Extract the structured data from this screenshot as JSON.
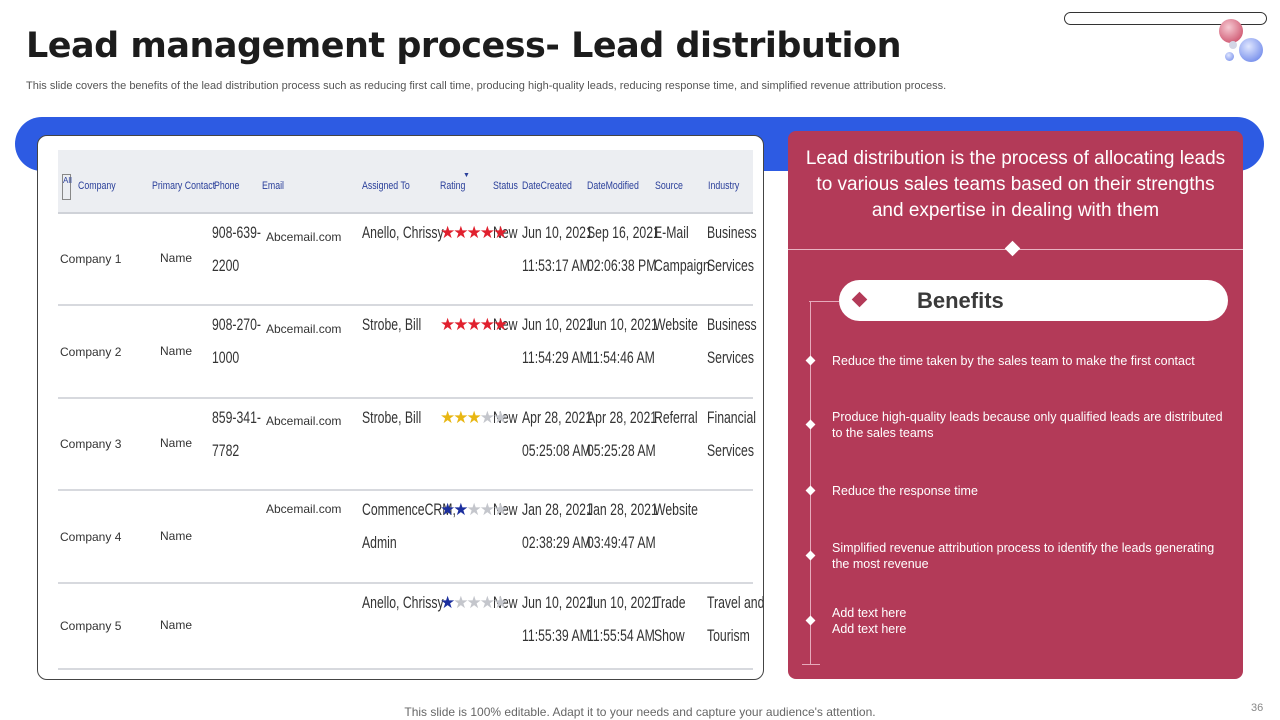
{
  "title": "Lead management process- Lead distribution",
  "subtitle": "This slide covers the benefits of the lead distribution process such as reducing first call time, producing high-quality leads, reducing response time, and simplified revenue attribution process.",
  "table": {
    "all_label": "All",
    "headers": [
      "Company",
      "Primary Contact",
      "Phone",
      "Email",
      "Assigned To",
      "Rating",
      "Status",
      "DateCreated",
      "DateModified",
      "Source",
      "Industry"
    ],
    "rows": [
      {
        "company": "Company 1",
        "contact": "Name",
        "phone_1": "908-639-",
        "phone_2": "2200",
        "email": "Abcemail.com",
        "assigned_1": "Anello, Chrissy",
        "assigned_2": "",
        "rating": 5,
        "status": "New",
        "created_1": "Jun 10, 2021",
        "created_2": "11:53:17 AM",
        "modified_1": "Sep 16, 2021",
        "modified_2": "02:06:38 PM",
        "source_1": "E-Mail",
        "source_2": "Campaign",
        "industry_1": "Business",
        "industry_2": "Services"
      },
      {
        "company": "Company 2",
        "contact": "Name",
        "phone_1": "908-270-",
        "phone_2": "1000",
        "email": "Abcemail.com",
        "assigned_1": "Strobe, Bill",
        "assigned_2": "",
        "rating": 5,
        "status": "New",
        "created_1": "Jun 10, 2021",
        "created_2": "11:54:29 AM",
        "modified_1": "Jun 10, 2021",
        "modified_2": "11:54:46 AM",
        "source_1": "Website",
        "source_2": "",
        "industry_1": "Business",
        "industry_2": "Services"
      },
      {
        "company": "Company 3",
        "contact": "Name",
        "phone_1": "859-341-",
        "phone_2": "7782",
        "email": "Abcemail.com",
        "assigned_1": "Strobe, Bill",
        "assigned_2": "",
        "rating": 3,
        "status": "New",
        "created_1": "Apr 28, 2021",
        "created_2": "05:25:08 AM",
        "modified_1": "Apr 28, 2021",
        "modified_2": "05:25:28 AM",
        "source_1": "Referral",
        "source_2": "",
        "industry_1": "Financial",
        "industry_2": "Services"
      },
      {
        "company": "Company 4",
        "contact": "Name",
        "phone_1": "",
        "phone_2": "",
        "email": "Abcemail.com",
        "assigned_1": "CommenceCRM,",
        "assigned_2": "Admin",
        "rating": 2,
        "status": "New",
        "created_1": "Jan 28, 2021",
        "created_2": "02:38:29 AM",
        "modified_1": "Jan 28, 2021",
        "modified_2": "03:49:47 AM",
        "source_1": "Website",
        "source_2": "",
        "industry_1": "",
        "industry_2": ""
      },
      {
        "company": "Company 5",
        "contact": "Name",
        "phone_1": "",
        "phone_2": "",
        "email": "",
        "assigned_1": "Anello, Chrissy",
        "assigned_2": "",
        "rating": 1,
        "status": "New",
        "created_1": "Jun 10, 2021",
        "created_2": "11:55:39 AM",
        "modified_1": "Jun 10, 2021",
        "modified_2": "11:55:54 AM",
        "source_1": "Trade",
        "source_2": "Show",
        "industry_1": "Travel and",
        "industry_2": "Tourism"
      }
    ]
  },
  "panel": {
    "intro": "Lead distribution is the process of allocating leads to various sales teams based on their strengths and expertise in dealing with them",
    "benefits_title": "Benefits",
    "benefits": [
      "Reduce the time taken by the sales team to make the first contact",
      "Produce high-quality leads because only qualified leads are distributed to the sales teams",
      "Reduce the response time",
      "Simplified revenue  attribution process to identify the leads generating the most revenue",
      "Add text here\nAdd text here"
    ]
  },
  "footer": "This slide is 100% editable. Adapt it to your needs and capture your audience's attention.",
  "page_number": "36",
  "colors": {
    "accent_blue": "#2d5be3",
    "panel_red": "#b33a58",
    "header_blue_text": "#2a3f9a",
    "star_red": "#e0202e",
    "star_gold": "#e8b612",
    "star_blue": "#1c2f9e"
  }
}
